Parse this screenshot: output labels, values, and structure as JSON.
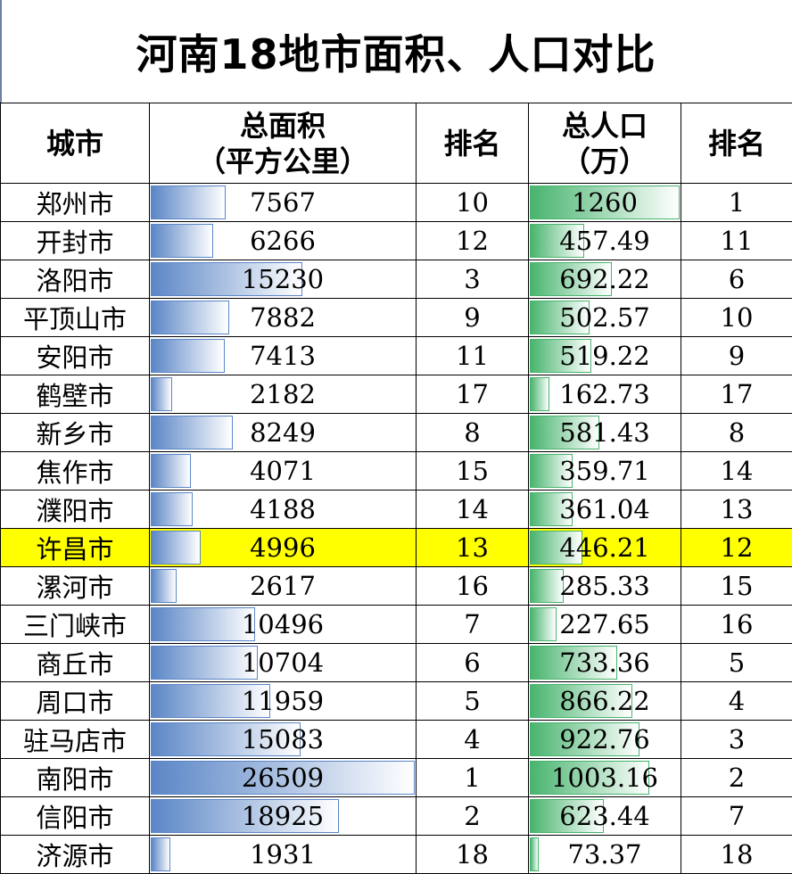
{
  "title": "河南18地市面积、人口对比",
  "chart_data": {
    "type": "table",
    "headers": {
      "city": "城市",
      "area": [
        "总面积",
        "（平方公里）"
      ],
      "area_rank": "排名",
      "population": [
        "总人口",
        "（万）"
      ],
      "pop_rank": "排名"
    },
    "highlight_color": "#ffff00",
    "area_bar_color": "#5b86c6",
    "pop_bar_color": "#48b46e",
    "area_bar_max": 26509,
    "pop_bar_max": 1260,
    "rows": [
      {
        "city": "郑州市",
        "area": "7567",
        "area_rank": "10",
        "population": "1260",
        "pop_rank": "1"
      },
      {
        "city": "开封市",
        "area": "6266",
        "area_rank": "12",
        "population": "457.49",
        "pop_rank": "11"
      },
      {
        "city": "洛阳市",
        "area": "15230",
        "area_rank": "3",
        "population": "692.22",
        "pop_rank": "6"
      },
      {
        "city": "平顶山市",
        "area": "7882",
        "area_rank": "9",
        "population": "502.57",
        "pop_rank": "10"
      },
      {
        "city": "安阳市",
        "area": "7413",
        "area_rank": "11",
        "population": "519.22",
        "pop_rank": "9"
      },
      {
        "city": "鹤壁市",
        "area": "2182",
        "area_rank": "17",
        "population": "162.73",
        "pop_rank": "17"
      },
      {
        "city": "新乡市",
        "area": "8249",
        "area_rank": "8",
        "population": "581.43",
        "pop_rank": "8"
      },
      {
        "city": "焦作市",
        "area": "4071",
        "area_rank": "15",
        "population": "359.71",
        "pop_rank": "14"
      },
      {
        "city": "濮阳市",
        "area": "4188",
        "area_rank": "14",
        "population": "361.04",
        "pop_rank": "13"
      },
      {
        "city": "许昌市",
        "area": "4996",
        "area_rank": "13",
        "population": "446.21",
        "pop_rank": "12",
        "highlight": true
      },
      {
        "city": "漯河市",
        "area": "2617",
        "area_rank": "16",
        "population": "285.33",
        "pop_rank": "15"
      },
      {
        "city": "三门峡市",
        "area": "10496",
        "area_rank": "7",
        "population": "227.65",
        "pop_rank": "16"
      },
      {
        "city": "商丘市",
        "area": "10704",
        "area_rank": "6",
        "population": "733.36",
        "pop_rank": "5"
      },
      {
        "city": "周口市",
        "area": "11959",
        "area_rank": "5",
        "population": "866.22",
        "pop_rank": "4"
      },
      {
        "city": "驻马店市",
        "area": "15083",
        "area_rank": "4",
        "population": "922.76",
        "pop_rank": "3"
      },
      {
        "city": "南阳市",
        "area": "26509",
        "area_rank": "1",
        "population": "1003.16",
        "pop_rank": "2"
      },
      {
        "city": "信阳市",
        "area": "18925",
        "area_rank": "2",
        "population": "623.44",
        "pop_rank": "7"
      },
      {
        "city": "济源市",
        "area": "1931",
        "area_rank": "18",
        "population": "73.37",
        "pop_rank": "18"
      }
    ]
  }
}
